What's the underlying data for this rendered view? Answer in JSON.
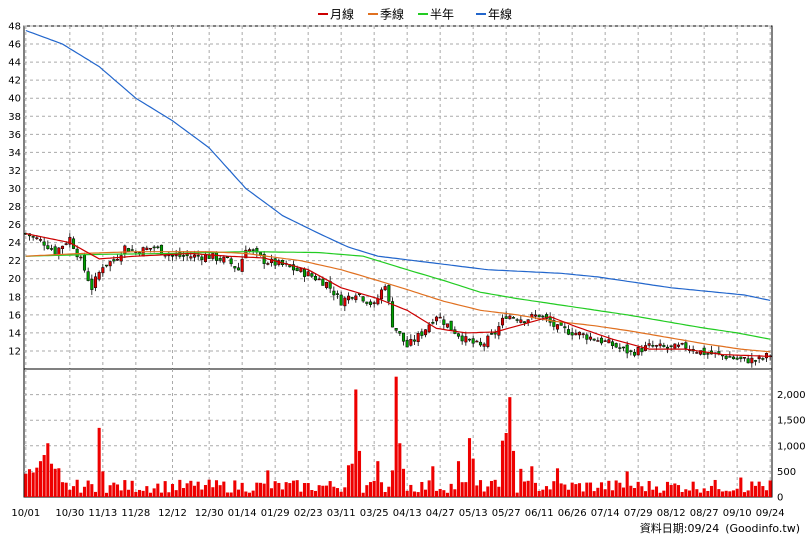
{
  "chart_data": {
    "type": "candlestick-with-volume",
    "title": "",
    "legend": {
      "placement": "top-center",
      "items": [
        {
          "name": "月線",
          "color": "#cc0000"
        },
        {
          "name": "季線",
          "color": "#e07020"
        },
        {
          "name": "半年",
          "color": "#22cc22"
        },
        {
          "name": "年線",
          "color": "#2266cc"
        }
      ]
    },
    "price_axis": {
      "side": "left",
      "min": 10,
      "max": 48,
      "ticks": [
        12,
        14,
        16,
        18,
        20,
        22,
        24,
        26,
        28,
        30,
        32,
        34,
        36,
        38,
        40,
        42,
        44,
        46,
        48
      ]
    },
    "volume_axis": {
      "side": "right",
      "min": 0,
      "max": 2500,
      "ticks": [
        0,
        500,
        "1,000",
        "1,500",
        "2,000"
      ],
      "tick_values": [
        0,
        500,
        1000,
        1500,
        2000
      ]
    },
    "x_ticks": [
      "10/01",
      "10/30",
      "11/13",
      "11/28",
      "12/12",
      "12/30",
      "01/14",
      "01/29",
      "02/23",
      "03/11",
      "03/25",
      "04/13",
      "04/27",
      "05/13",
      "05/27",
      "06/11",
      "06/26",
      "07/14",
      "07/29",
      "08/12",
      "08/27",
      "09/10",
      "09/24"
    ],
    "x_tick_index": [
      0,
      12,
      21,
      30,
      40,
      50,
      59,
      68,
      77,
      86,
      95,
      104,
      113,
      122,
      131,
      140,
      149,
      158,
      167,
      176,
      185,
      194,
      203
    ],
    "n_bars": 204,
    "close_anchors": [
      [
        0,
        25.0
      ],
      [
        5,
        24.0
      ],
      [
        8,
        23.0
      ],
      [
        12,
        24.5
      ],
      [
        15,
        22.0
      ],
      [
        18,
        19.0
      ],
      [
        21,
        21.5
      ],
      [
        24,
        22.0
      ],
      [
        27,
        23.5
      ],
      [
        30,
        23.0
      ],
      [
        35,
        23.5
      ],
      [
        40,
        22.5
      ],
      [
        50,
        22.5
      ],
      [
        55,
        22.0
      ],
      [
        58,
        21.0
      ],
      [
        60,
        23.5
      ],
      [
        65,
        22.0
      ],
      [
        70,
        21.5
      ],
      [
        77,
        20.5
      ],
      [
        82,
        19.5
      ],
      [
        86,
        17.5
      ],
      [
        90,
        18.5
      ],
      [
        95,
        17.0
      ],
      [
        98,
        19.5
      ],
      [
        100,
        15.0
      ],
      [
        104,
        12.5
      ],
      [
        108,
        14.0
      ],
      [
        112,
        16.0
      ],
      [
        116,
        14.5
      ],
      [
        120,
        13.2
      ],
      [
        124,
        12.5
      ],
      [
        128,
        14.0
      ],
      [
        131,
        16.0
      ],
      [
        136,
        15.5
      ],
      [
        140,
        16.0
      ],
      [
        145,
        14.5
      ],
      [
        150,
        14.0
      ],
      [
        158,
        13.0
      ],
      [
        165,
        11.8
      ],
      [
        170,
        12.5
      ],
      [
        176,
        12.3
      ],
      [
        180,
        12.5
      ],
      [
        185,
        11.8
      ],
      [
        190,
        11.5
      ],
      [
        195,
        11.0
      ],
      [
        200,
        11.0
      ],
      [
        203,
        11.6
      ]
    ],
    "ma_month": [
      [
        0,
        25.0
      ],
      [
        12,
        24.0
      ],
      [
        20,
        22.2
      ],
      [
        30,
        22.5
      ],
      [
        45,
        22.8
      ],
      [
        55,
        22.5
      ],
      [
        65,
        22.3
      ],
      [
        77,
        21.0
      ],
      [
        86,
        19.0
      ],
      [
        96,
        17.8
      ],
      [
        104,
        16.5
      ],
      [
        112,
        14.5
      ],
      [
        120,
        14.0
      ],
      [
        128,
        14.1
      ],
      [
        136,
        15.0
      ],
      [
        143,
        15.8
      ],
      [
        150,
        14.7
      ],
      [
        160,
        13.3
      ],
      [
        170,
        12.2
      ],
      [
        180,
        12.2
      ],
      [
        190,
        11.6
      ],
      [
        203,
        11.4
      ]
    ],
    "ma_quarter": [
      [
        0,
        22.5
      ],
      [
        15,
        22.8
      ],
      [
        30,
        23.0
      ],
      [
        50,
        23.0
      ],
      [
        60,
        22.8
      ],
      [
        75,
        22.0
      ],
      [
        86,
        21.0
      ],
      [
        96,
        19.8
      ],
      [
        104,
        18.8
      ],
      [
        114,
        17.5
      ],
      [
        124,
        16.5
      ],
      [
        134,
        16.0
      ],
      [
        144,
        15.3
      ],
      [
        155,
        14.8
      ],
      [
        165,
        14.2
      ],
      [
        175,
        13.5
      ],
      [
        185,
        12.8
      ],
      [
        195,
        12.2
      ],
      [
        203,
        11.9
      ]
    ],
    "ma_half": [
      [
        0,
        22.5
      ],
      [
        20,
        22.7
      ],
      [
        40,
        22.8
      ],
      [
        60,
        23.0
      ],
      [
        80,
        22.9
      ],
      [
        92,
        22.5
      ],
      [
        104,
        21.0
      ],
      [
        114,
        19.8
      ],
      [
        124,
        18.5
      ],
      [
        134,
        17.8
      ],
      [
        144,
        17.2
      ],
      [
        154,
        16.6
      ],
      [
        164,
        16.0
      ],
      [
        174,
        15.3
      ],
      [
        184,
        14.6
      ],
      [
        194,
        14.0
      ],
      [
        203,
        13.3
      ]
    ],
    "ma_year": [
      [
        0,
        47.5
      ],
      [
        10,
        46.0
      ],
      [
        20,
        43.5
      ],
      [
        30,
        40.0
      ],
      [
        40,
        37.5
      ],
      [
        50,
        34.5
      ],
      [
        60,
        30.0
      ],
      [
        70,
        27.0
      ],
      [
        80,
        25.0
      ],
      [
        88,
        23.5
      ],
      [
        96,
        22.5
      ],
      [
        106,
        22.0
      ],
      [
        116,
        21.5
      ],
      [
        126,
        21.0
      ],
      [
        136,
        20.8
      ],
      [
        146,
        20.6
      ],
      [
        156,
        20.2
      ],
      [
        166,
        19.6
      ],
      [
        176,
        19.0
      ],
      [
        186,
        18.6
      ],
      [
        196,
        18.2
      ],
      [
        203,
        17.6
      ]
    ],
    "volume_spikes": [
      [
        4,
        700
      ],
      [
        5,
        820
      ],
      [
        6,
        1050
      ],
      [
        7,
        650
      ],
      [
        20,
        1350
      ],
      [
        21,
        500
      ],
      [
        66,
        520
      ],
      [
        88,
        620
      ],
      [
        89,
        650
      ],
      [
        90,
        2100
      ],
      [
        91,
        900
      ],
      [
        96,
        700
      ],
      [
        100,
        520
      ],
      [
        101,
        2350
      ],
      [
        102,
        1050
      ],
      [
        103,
        550
      ],
      [
        111,
        600
      ],
      [
        118,
        700
      ],
      [
        121,
        1150
      ],
      [
        122,
        750
      ],
      [
        130,
        1100
      ],
      [
        131,
        1250
      ],
      [
        132,
        1950
      ],
      [
        133,
        900
      ],
      [
        135,
        550
      ],
      [
        138,
        600
      ],
      [
        145,
        560
      ],
      [
        164,
        500
      ],
      [
        195,
        380
      ],
      [
        200,
        300
      ]
    ]
  },
  "footer": {
    "label": "資料日期:",
    "date": "09/24",
    "source": "(Goodinfo.tw)"
  }
}
